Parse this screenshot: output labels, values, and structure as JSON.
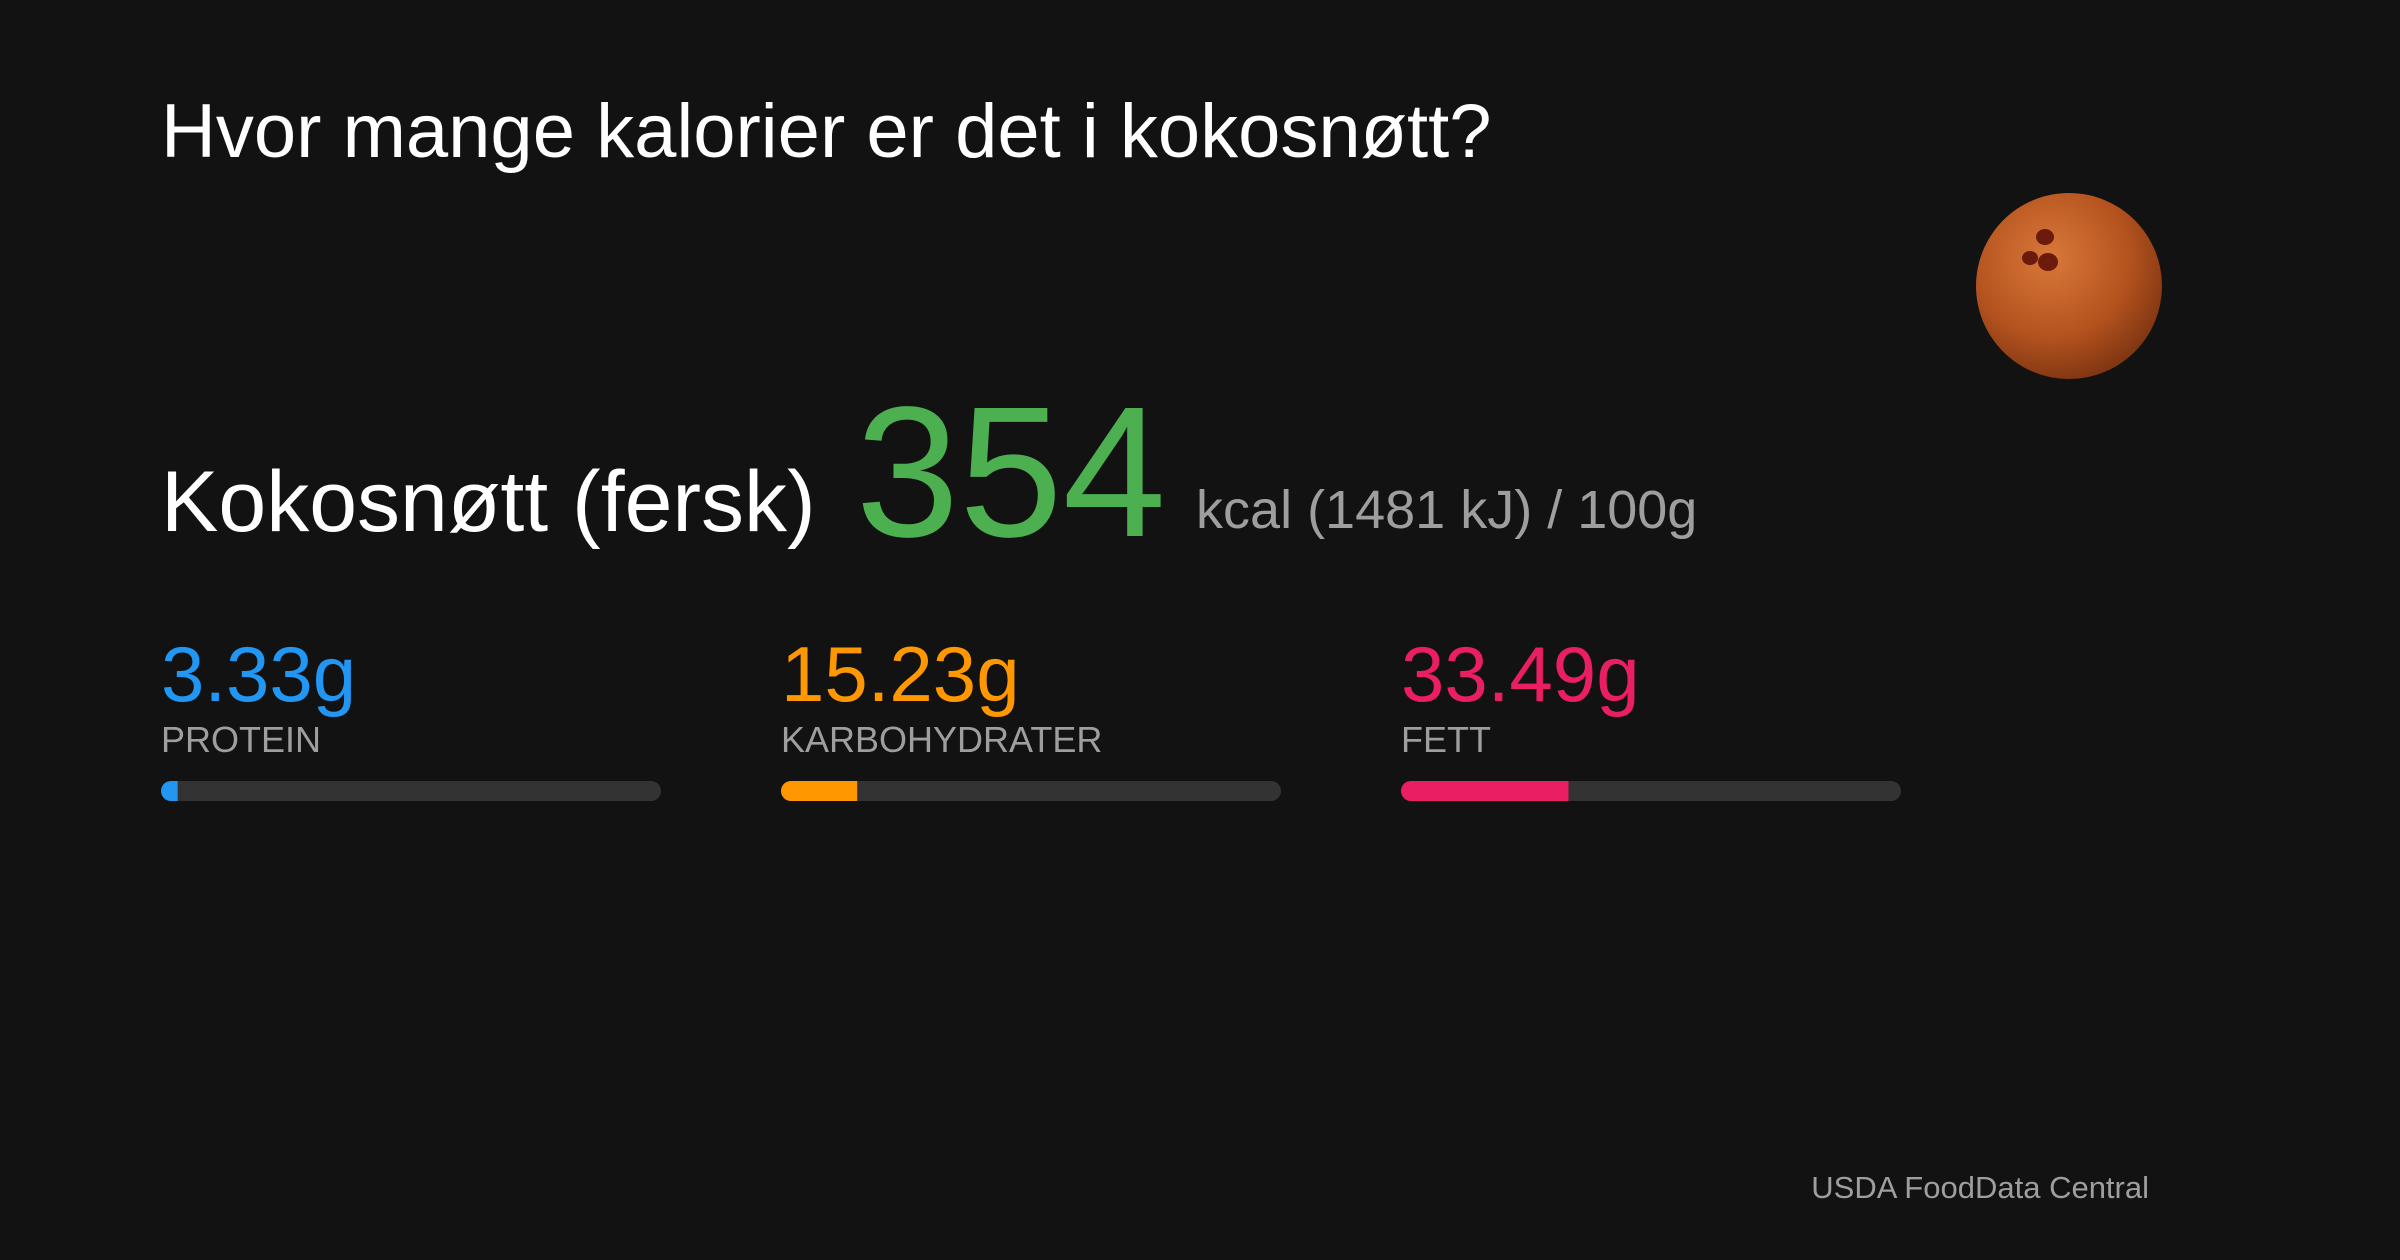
{
  "header": {
    "title": "Hvor mange kalorier er det i kokosnøtt?"
  },
  "food": {
    "name": "Kokosnøtt (fersk)",
    "kcal": 354,
    "energy_label": "kcal (1481 kJ)",
    "serving": {
      "value": 100,
      "label": "/ 100g"
    }
  },
  "macros": [
    {
      "value": 3.33,
      "value_label": "3.33g",
      "label": "PROTEIN",
      "color": "#2196f3"
    },
    {
      "value": 15.23,
      "value_label": "15.23g",
      "label": "KARBOHYDRATER",
      "color": "#ff9800"
    },
    {
      "value": 33.49,
      "value_label": "33.49g",
      "label": "FETT",
      "color": "#e91e63"
    }
  ],
  "source": "USDA FoodData Central"
}
